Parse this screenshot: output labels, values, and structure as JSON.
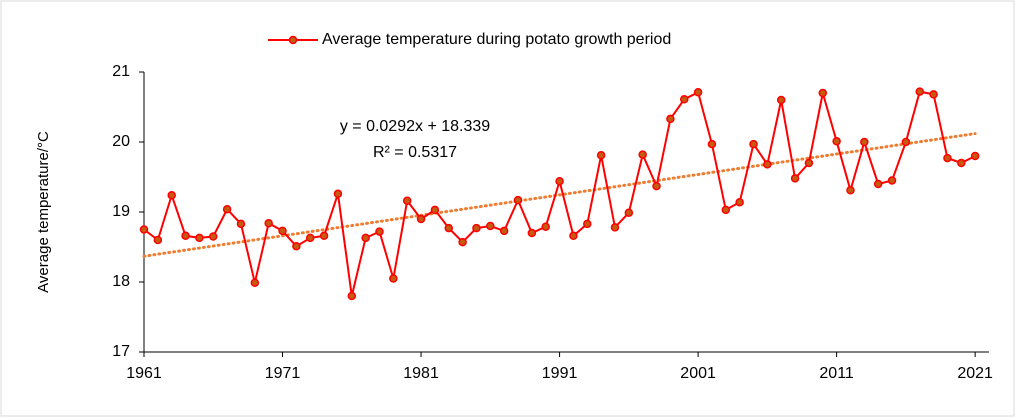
{
  "chart_data": {
    "type": "line",
    "y_label": "Average temperature/°C",
    "x": [
      1961,
      1962,
      1963,
      1964,
      1965,
      1966,
      1967,
      1968,
      1969,
      1970,
      1971,
      1972,
      1973,
      1974,
      1975,
      1976,
      1977,
      1978,
      1979,
      1980,
      1981,
      1982,
      1983,
      1984,
      1985,
      1986,
      1987,
      1988,
      1989,
      1990,
      1991,
      1992,
      1993,
      1994,
      1995,
      1996,
      1997,
      1998,
      1999,
      2000,
      2001,
      2002,
      2003,
      2004,
      2005,
      2006,
      2007,
      2008,
      2009,
      2010,
      2011,
      2012,
      2013,
      2014,
      2015,
      2016,
      2017,
      2018,
      2019,
      2020,
      2021
    ],
    "series": [
      {
        "name": "Average temperature during potato growth period",
        "color": "#ff0000",
        "marker_color": "#c55a11",
        "values": [
          18.75,
          18.6,
          19.24,
          18.66,
          18.63,
          18.65,
          19.04,
          18.83,
          17.99,
          18.84,
          18.73,
          18.51,
          18.63,
          18.66,
          19.26,
          17.8,
          18.63,
          18.72,
          18.05,
          19.16,
          18.9,
          19.03,
          18.77,
          18.57,
          18.77,
          18.8,
          18.73,
          19.17,
          18.7,
          18.79,
          19.44,
          18.66,
          18.83,
          19.81,
          18.78,
          18.99,
          19.82,
          19.37,
          20.33,
          20.61,
          20.71,
          19.97,
          19.03,
          19.14,
          19.97,
          19.68,
          20.6,
          19.48,
          19.7,
          20.7,
          20.01,
          19.31,
          20.0,
          19.4,
          19.45,
          20.0,
          20.72,
          20.68,
          19.77,
          19.7,
          19.8
        ]
      }
    ],
    "trendline": {
      "equation": "y = 0.0292x + 18.339",
      "r_squared": "R² = 0.5317",
      "slope": 0.0292,
      "intercept": 18.339,
      "color": "#ed7d31"
    },
    "xlim": [
      1961,
      2022
    ],
    "xticks": [
      1961,
      1971,
      1981,
      1991,
      2001,
      2011,
      2021
    ],
    "ylim": [
      17,
      21
    ],
    "yticks": [
      17,
      18,
      19,
      20,
      21
    ],
    "grid": false,
    "legend": "top"
  }
}
